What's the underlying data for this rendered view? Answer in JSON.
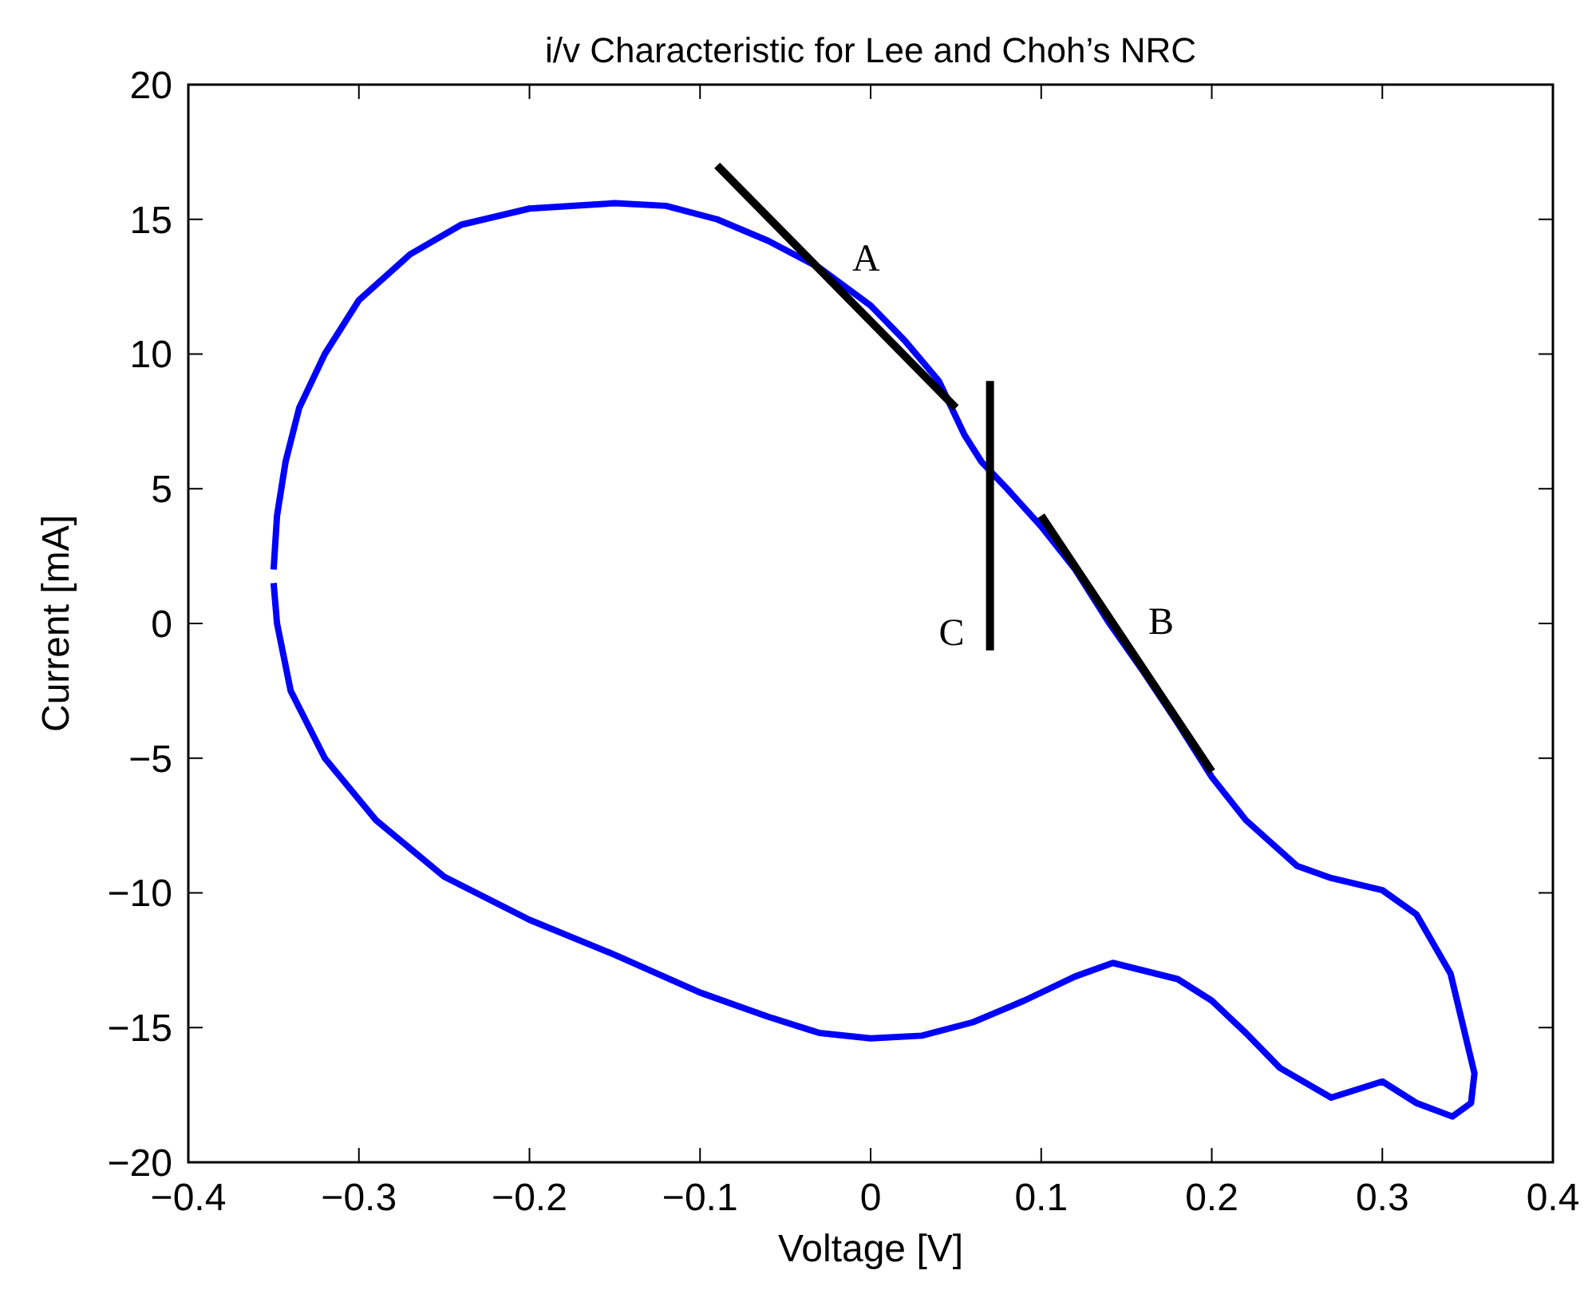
{
  "chart_data": {
    "type": "line",
    "title": "i/v Characteristic for Lee and Choh’s NRC",
    "xlabel": "Voltage [V]",
    "ylabel": "Current [mA]",
    "xlim": [
      -0.4,
      0.4
    ],
    "ylim": [
      -20,
      20
    ],
    "xticks": [
      {
        "value": -0.4,
        "label": "−0.4"
      },
      {
        "value": -0.3,
        "label": "−0.3"
      },
      {
        "value": -0.2,
        "label": "−0.2"
      },
      {
        "value": -0.1,
        "label": "−0.1"
      },
      0,
      0.1,
      0.2,
      0.3,
      0.4
    ],
    "yticks": [
      {
        "value": -20,
        "label": "−20"
      },
      {
        "value": -15,
        "label": "−15"
      },
      {
        "value": -10,
        "label": "−10"
      },
      {
        "value": -5,
        "label": "−5"
      },
      0,
      5,
      10,
      15,
      20
    ],
    "grid": false,
    "marker": "none",
    "line_style": "solid",
    "series": [
      {
        "color": "#0000ff",
        "x": [
          -0.35,
          -0.348,
          -0.343,
          -0.335,
          -0.32,
          -0.3,
          -0.27,
          -0.24,
          -0.2,
          -0.15,
          -0.12,
          -0.09,
          -0.06,
          -0.03,
          0,
          0.02,
          0.04,
          0.055,
          0.065,
          0.08,
          0.1,
          0.12,
          0.14,
          0.16,
          0.18,
          0.2,
          0.22,
          0.25,
          0.27,
          0.3,
          0.32,
          0.34,
          0.354,
          0.352,
          0.341,
          0.32,
          0.3,
          0.27,
          0.24,
          0.22,
          0.2,
          0.18,
          0.142,
          0.12,
          0.09,
          0.06,
          0.03,
          0,
          -0.03,
          -0.06,
          -0.1,
          -0.15,
          -0.2,
          -0.25,
          -0.29,
          -0.32,
          -0.34,
          -0.348,
          -0.35
        ],
        "values": [
          2,
          4,
          6,
          8,
          10,
          12,
          13.7,
          14.8,
          15.4,
          15.6,
          15.5,
          15,
          14.2,
          13.2,
          11.8,
          10.5,
          9,
          7,
          6,
          5,
          3.6,
          2,
          0,
          -1.8,
          -3.7,
          -5.7,
          -7.3,
          -9,
          -9.45,
          -9.9,
          -10.8,
          -13,
          -16.7,
          -17.8,
          -18.3,
          -17.8,
          -17,
          -17.6,
          -16.5,
          -15.2,
          -14,
          -13.2,
          -12.6,
          -13.1,
          -14,
          -14.8,
          -15.3,
          -15.4,
          -15.2,
          -14.6,
          -13.7,
          -12.3,
          -11,
          -9.4,
          -7.3,
          -5,
          -2.5,
          0,
          1.5
        ]
      },
      {
        "name": "A",
        "color": "#000000",
        "x": [
          -0.09,
          0.05
        ],
        "values": [
          17,
          8
        ]
      },
      {
        "name": "C",
        "color": "#000000",
        "x": [
          0.07,
          0.07
        ],
        "values": [
          9,
          -1
        ]
      },
      {
        "name": "B",
        "color": "#000000",
        "x": [
          0.1,
          0.2
        ],
        "values": [
          4,
          -5.5
        ]
      }
    ]
  }
}
